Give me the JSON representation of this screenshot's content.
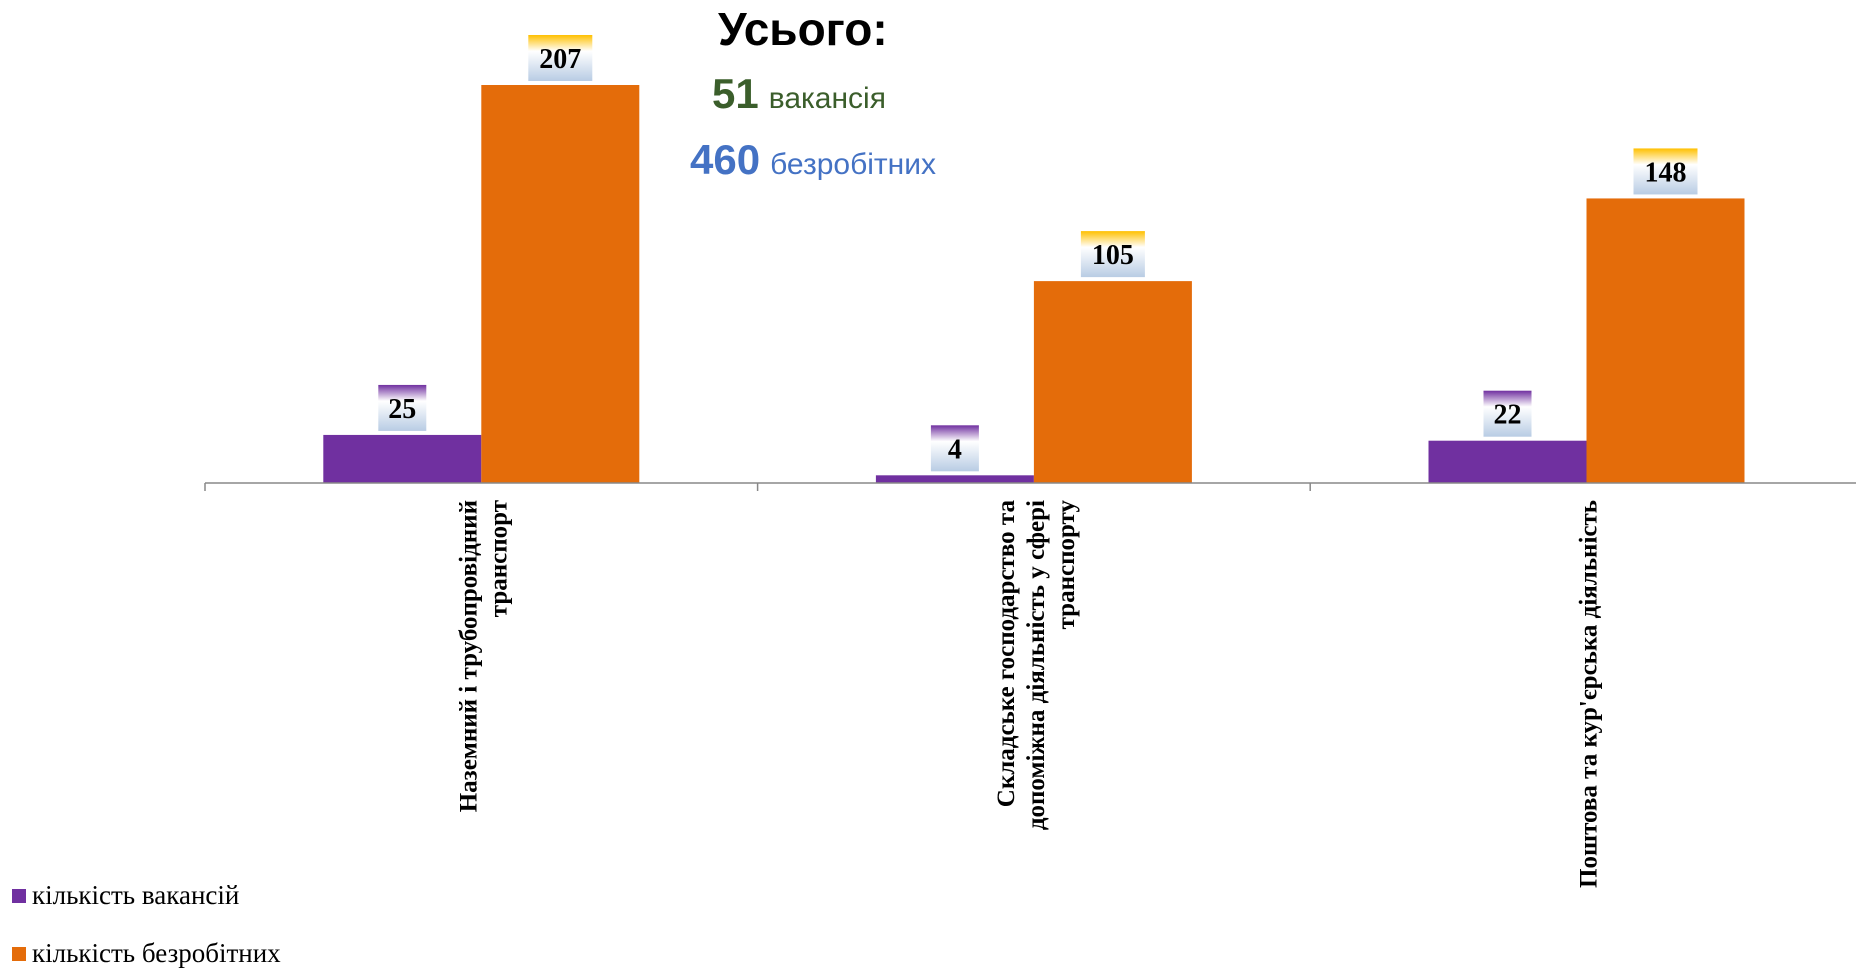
{
  "summary": {
    "title": "Усього:",
    "vacancies_number": "51",
    "vacancies_word": "вакансія",
    "unemployed_number": "460",
    "unemployed_word": "безробітних"
  },
  "chart_data": {
    "type": "bar",
    "categories": [
      [
        "Наземний і трубопровідний",
        "транспорт"
      ],
      [
        "Складське господарство та",
        "допоміжна діяльність у сфері",
        "транспорту"
      ],
      [
        "Поштова та кур'єрська діяльність"
      ]
    ],
    "series": [
      {
        "name": "кількість вакансій",
        "values": [
          25,
          4,
          22
        ],
        "color": "#7030a0"
      },
      {
        "name": "кількість безробітних",
        "values": [
          207,
          105,
          148
        ],
        "color": "#e46c0a"
      }
    ],
    "ylim": [
      0,
      207
    ],
    "grid": false,
    "legend_position": "bottom-left",
    "label_style": {
      "badge_top": "#ffd700",
      "badge_bottom": "#b3c6e7",
      "vac_badge_top": "#7030a0"
    }
  }
}
